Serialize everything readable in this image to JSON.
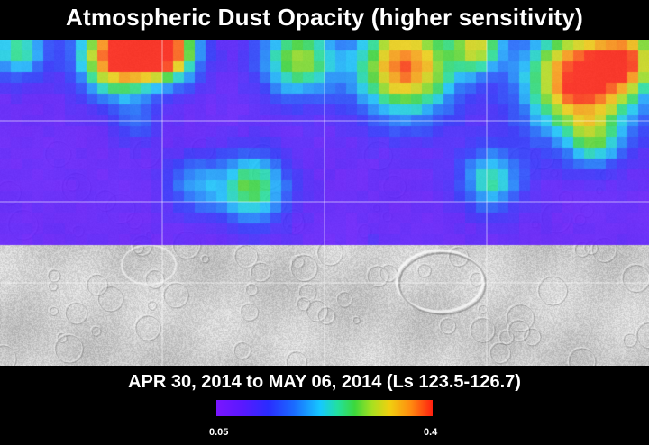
{
  "title": "Atmospheric Dust Opacity (higher sensitivity)",
  "date_range": "APR 30, 2014 to MAY 06, 2014 (Ls 123.5-126.7)",
  "colorbar": {
    "min_label": "0.05",
    "max_label": "0.4",
    "min": 0.05,
    "max": 0.4
  },
  "map": {
    "grid_lines": true,
    "dust_coverage": "northern hemisphere",
    "background": "shaded relief (grey)"
  }
}
